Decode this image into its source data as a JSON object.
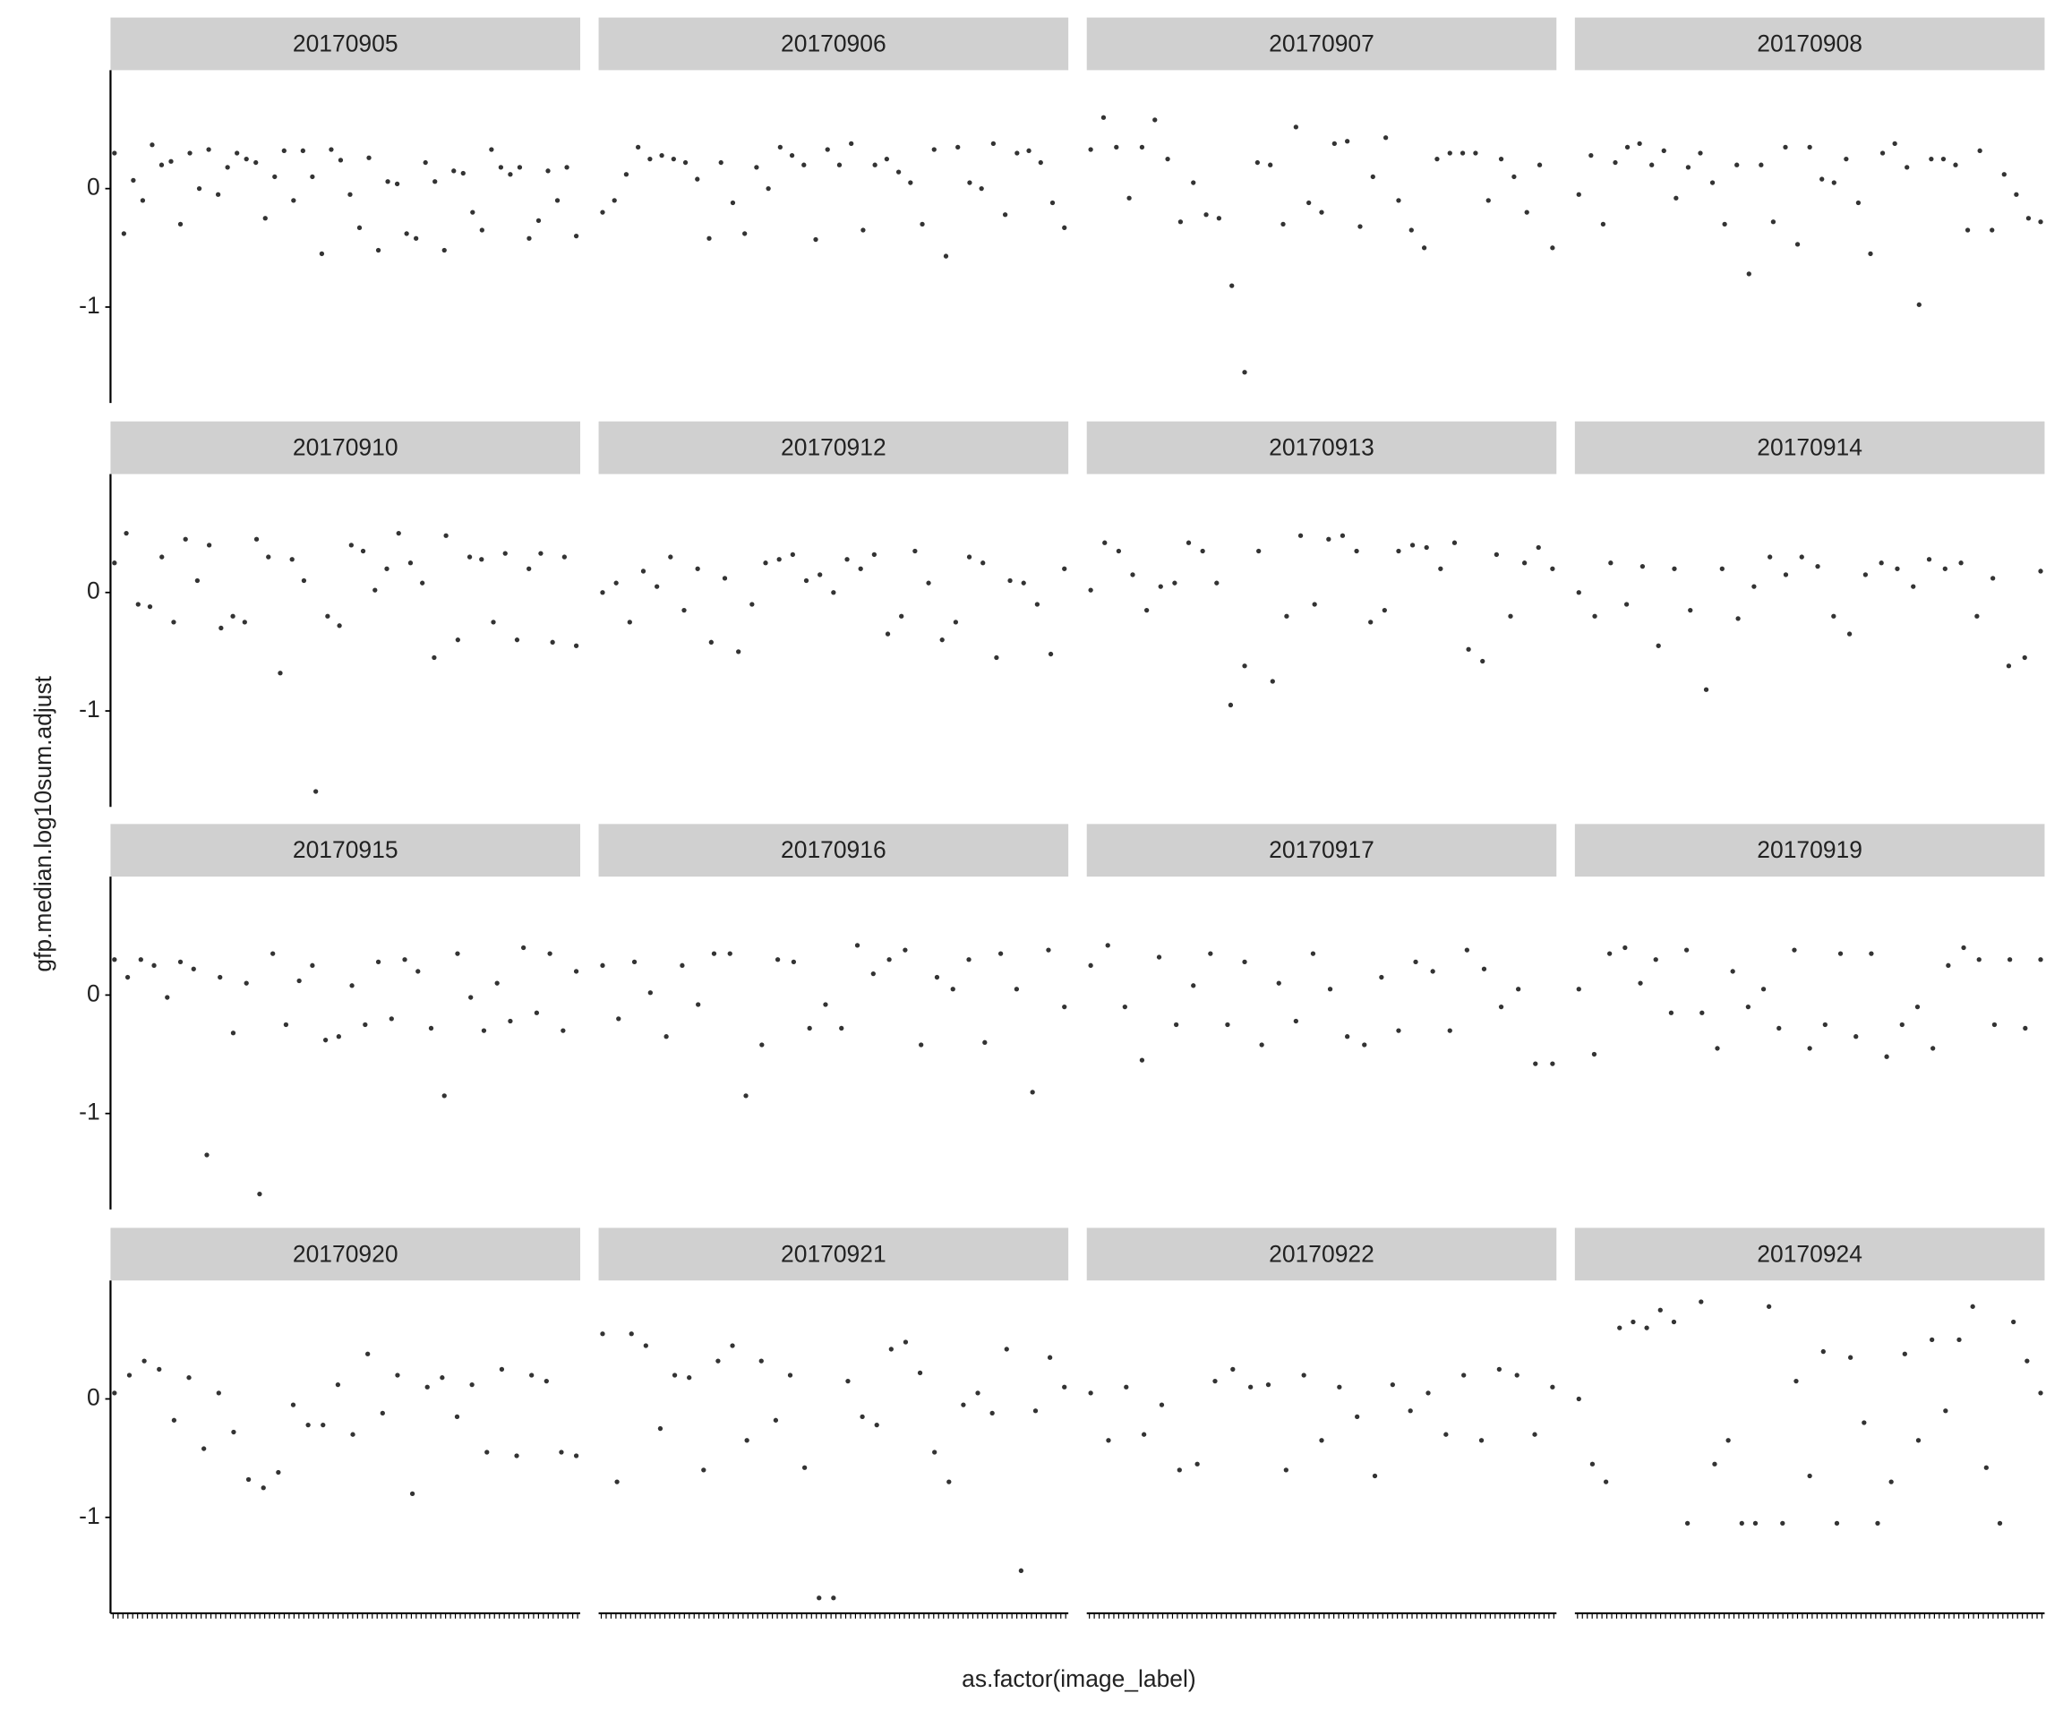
{
  "chart_data": {
    "type": "scatter",
    "xlabel": "as.factor(image_label)",
    "ylabel": "gfp.median.log10sum.adjust",
    "ylim": [
      -1.81,
      1.0
    ],
    "yticks": [
      -1,
      0
    ],
    "color": "#333333",
    "facets": [
      {
        "label": "20170905",
        "values": [
          0.3,
          -0.38,
          0.07,
          -0.1,
          0.37,
          0.2,
          0.23,
          -0.3,
          0.3,
          0.0,
          0.33,
          -0.05,
          0.18,
          0.3,
          0.25,
          0.22,
          -0.25,
          0.1,
          0.32,
          -0.1,
          0.32,
          0.1,
          -0.55,
          0.33,
          0.24,
          -0.05,
          -0.33,
          0.26,
          -0.52,
          0.06,
          0.04,
          -0.38,
          -0.42,
          0.22,
          0.06,
          -0.52,
          0.15,
          0.13,
          -0.2,
          -0.35,
          0.33,
          0.18,
          0.12,
          0.18,
          -0.42,
          -0.27,
          0.15,
          -0.1,
          0.18,
          -0.4
        ]
      },
      {
        "label": "20170906",
        "values": [
          -0.2,
          -0.1,
          0.12,
          0.35,
          0.25,
          0.28,
          0.25,
          0.22,
          0.08,
          -0.42,
          0.22,
          -0.12,
          -0.38,
          0.18,
          0.0,
          0.35,
          0.28,
          0.2,
          -0.43,
          0.33,
          0.2,
          0.38,
          -0.35,
          0.2,
          0.25,
          0.14,
          0.05,
          -0.3,
          0.33,
          -0.57,
          0.35,
          0.05,
          0.0,
          0.38,
          -0.22,
          0.3,
          0.32,
          0.22,
          -0.12,
          -0.33
        ]
      },
      {
        "label": "20170907",
        "values": [
          0.33,
          0.6,
          0.35,
          -0.08,
          0.35,
          0.58,
          0.25,
          -0.28,
          0.05,
          -0.22,
          -0.25,
          -0.82,
          -1.55,
          0.22,
          0.2,
          -0.3,
          0.52,
          -0.12,
          -0.2,
          0.38,
          0.4,
          -0.32,
          0.1,
          0.43,
          -0.1,
          -0.35,
          -0.5,
          0.25,
          0.3,
          0.3,
          0.3,
          -0.1,
          0.25,
          0.1,
          -0.2,
          0.2,
          -0.5
        ]
      },
      {
        "label": "20170908",
        "values": [
          -0.05,
          0.28,
          -0.3,
          0.22,
          0.35,
          0.38,
          0.2,
          0.32,
          -0.08,
          0.18,
          0.3,
          0.05,
          -0.3,
          0.2,
          -0.72,
          0.2,
          -0.28,
          0.35,
          -0.47,
          0.35,
          0.08,
          0.05,
          0.25,
          -0.12,
          -0.55,
          0.3,
          0.38,
          0.18,
          -0.98,
          0.25,
          0.25,
          0.2,
          -0.35,
          0.32,
          -0.35,
          0.12,
          -0.05,
          -0.25,
          -0.28
        ]
      },
      {
        "label": "20170910",
        "values": [
          0.25,
          0.5,
          -0.1,
          -0.12,
          0.3,
          -0.25,
          0.45,
          0.1,
          0.4,
          -0.3,
          -0.2,
          -0.25,
          0.45,
          0.3,
          -0.68,
          0.28,
          0.1,
          -1.68,
          -0.2,
          -0.28,
          0.4,
          0.35,
          0.02,
          0.2,
          0.5,
          0.25,
          0.08,
          -0.55,
          0.48,
          -0.4,
          0.3,
          0.28,
          -0.25,
          0.33,
          -0.4,
          0.2,
          0.33,
          -0.42,
          0.3,
          -0.45
        ]
      },
      {
        "label": "20170912",
        "values": [
          0.0,
          0.08,
          -0.25,
          0.18,
          0.05,
          0.3,
          -0.15,
          0.2,
          -0.42,
          0.12,
          -0.5,
          -0.1,
          0.25,
          0.28,
          0.32,
          0.1,
          0.15,
          0.0,
          0.28,
          0.2,
          0.32,
          -0.35,
          -0.2,
          0.35,
          0.08,
          -0.4,
          -0.25,
          0.3,
          0.25,
          -0.55,
          0.1,
          0.08,
          -0.1,
          -0.52,
          0.2
        ]
      },
      {
        "label": "20170913",
        "values": [
          0.02,
          0.42,
          0.35,
          0.15,
          -0.15,
          0.05,
          0.08,
          0.42,
          0.35,
          0.08,
          -0.95,
          -0.62,
          0.35,
          -0.75,
          -0.2,
          0.48,
          -0.1,
          0.45,
          0.48,
          0.35,
          -0.25,
          -0.15,
          0.35,
          0.4,
          0.38,
          0.2,
          0.42,
          -0.48,
          -0.58,
          0.32,
          -0.2,
          0.25,
          0.38,
          0.2
        ]
      },
      {
        "label": "20170914",
        "values": [
          0.0,
          -0.2,
          0.25,
          -0.1,
          0.22,
          -0.45,
          0.2,
          -0.15,
          -0.82,
          0.2,
          -0.22,
          0.05,
          0.3,
          0.15,
          0.3,
          0.22,
          -0.2,
          -0.35,
          0.15,
          0.25,
          0.2,
          0.05,
          0.28,
          0.2,
          0.25,
          -0.2,
          0.12,
          -0.62,
          -0.55,
          0.18
        ]
      },
      {
        "label": "20170915",
        "values": [
          0.3,
          0.15,
          0.3,
          0.25,
          -0.02,
          0.28,
          0.22,
          -1.35,
          0.15,
          -0.32,
          0.1,
          -1.68,
          0.35,
          -0.25,
          0.12,
          0.25,
          -0.38,
          -0.35,
          0.08,
          -0.25,
          0.28,
          -0.2,
          0.3,
          0.2,
          -0.28,
          -0.85,
          0.35,
          -0.02,
          -0.3,
          0.1,
          -0.22,
          0.4,
          -0.15,
          0.35,
          -0.3,
          0.2
        ]
      },
      {
        "label": "20170916",
        "values": [
          0.25,
          -0.2,
          0.28,
          0.02,
          -0.35,
          0.25,
          -0.08,
          0.35,
          0.35,
          -0.85,
          -0.42,
          0.3,
          0.28,
          -0.28,
          -0.08,
          -0.28,
          0.42,
          0.18,
          0.3,
          0.38,
          -0.42,
          0.15,
          0.05,
          0.3,
          -0.4,
          0.35,
          0.05,
          -0.82,
          0.38,
          -0.1
        ]
      },
      {
        "label": "20170917",
        "values": [
          0.25,
          0.42,
          -0.1,
          -0.55,
          0.32,
          -0.25,
          0.08,
          0.35,
          -0.25,
          0.28,
          -0.42,
          0.1,
          -0.22,
          0.35,
          0.05,
          -0.35,
          -0.42,
          0.15,
          -0.3,
          0.28,
          0.2,
          -0.3,
          0.38,
          0.22,
          -0.1,
          0.05,
          -0.58,
          -0.58
        ]
      },
      {
        "label": "20170919",
        "values": [
          0.05,
          -0.5,
          0.35,
          0.4,
          0.1,
          0.3,
          -0.15,
          0.38,
          -0.15,
          -0.45,
          0.2,
          -0.1,
          0.05,
          -0.28,
          0.38,
          -0.45,
          -0.25,
          0.35,
          -0.35,
          0.35,
          -0.52,
          -0.25,
          -0.1,
          -0.45,
          0.25,
          0.4,
          0.3,
          -0.25,
          0.3,
          -0.28,
          0.3
        ]
      },
      {
        "label": "20170920",
        "values": [
          0.05,
          0.2,
          0.32,
          0.25,
          -0.18,
          0.18,
          -0.42,
          0.05,
          -0.28,
          -0.68,
          -0.75,
          -0.62,
          -0.05,
          -0.22,
          -0.22,
          0.12,
          -0.3,
          0.38,
          -0.12,
          0.2,
          -0.8,
          0.1,
          0.18,
          -0.15,
          0.12,
          -0.45,
          0.25,
          -0.48,
          0.2,
          0.15,
          -0.45,
          -0.48
        ]
      },
      {
        "label": "20170921",
        "values": [
          0.55,
          -0.7,
          0.55,
          0.45,
          -0.25,
          0.2,
          0.18,
          -0.6,
          0.32,
          0.45,
          -0.35,
          0.32,
          -0.18,
          0.2,
          -0.58,
          -1.68,
          -1.68,
          0.15,
          -0.15,
          -0.22,
          0.42,
          0.48,
          0.22,
          -0.45,
          -0.7,
          -0.05,
          0.05,
          -0.12,
          0.42,
          -1.45,
          -0.1,
          0.35,
          0.1
        ]
      },
      {
        "label": "20170922",
        "values": [
          0.05,
          -0.35,
          0.1,
          -0.3,
          -0.05,
          -0.6,
          -0.55,
          0.15,
          0.25,
          0.1,
          0.12,
          -0.6,
          0.2,
          -0.35,
          0.1,
          -0.15,
          -0.65,
          0.12,
          -0.1,
          0.05,
          -0.3,
          0.2,
          -0.35,
          0.25,
          0.2,
          -0.3,
          0.1
        ]
      },
      {
        "label": "20170924",
        "values": [
          0.0,
          -0.55,
          -0.7,
          0.6,
          0.65,
          0.6,
          0.75,
          0.65,
          -1.05,
          0.82,
          -0.55,
          -0.35,
          -1.05,
          -1.05,
          0.78,
          -1.05,
          0.15,
          -0.65,
          0.4,
          -1.05,
          0.35,
          -0.2,
          -1.05,
          -0.7,
          0.38,
          -0.35,
          0.5,
          -0.1,
          0.5,
          0.78,
          -0.58,
          -1.05,
          0.65,
          0.32,
          0.05
        ]
      }
    ]
  }
}
